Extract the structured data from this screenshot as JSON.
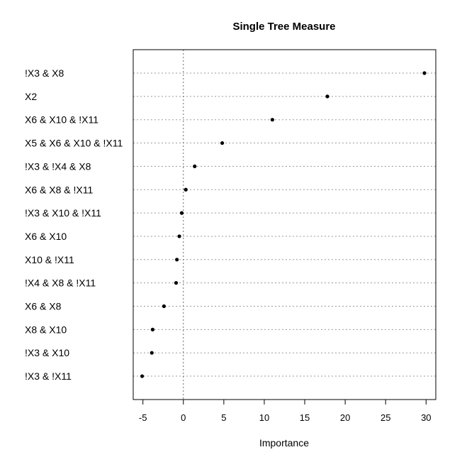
{
  "chart_data": {
    "type": "scatter",
    "title": "Single Tree Measure",
    "xlabel": "Importance",
    "ylabel": "",
    "xlim": [
      -6.2,
      31.2
    ],
    "xticks": [
      -5,
      0,
      5,
      10,
      15,
      20,
      25,
      30
    ],
    "xtick_labels": [
      "-5",
      "0",
      "5",
      "10",
      "15",
      "20",
      "25",
      "30"
    ],
    "grid": true,
    "reference_line_x": 0,
    "categories": [
      "!X3 & X8",
      "X2",
      "X6 & X10 & !X11",
      "X5 & X6 & X10 & !X11",
      "!X3 & !X4 & X8",
      "X6 & X8 & !X11",
      "!X3 & X10 & !X11",
      "X6 & X10",
      "X10 & !X11",
      "!X4 & X8 & !X11",
      "X6 & X8",
      "X8 & X10",
      "!X3 & X10",
      "!X3 & !X11"
    ],
    "values": [
      29.8,
      17.8,
      11.0,
      4.8,
      1.4,
      0.3,
      -0.2,
      -0.5,
      -0.8,
      -0.9,
      -2.4,
      -3.8,
      -3.9,
      -5.1
    ]
  }
}
